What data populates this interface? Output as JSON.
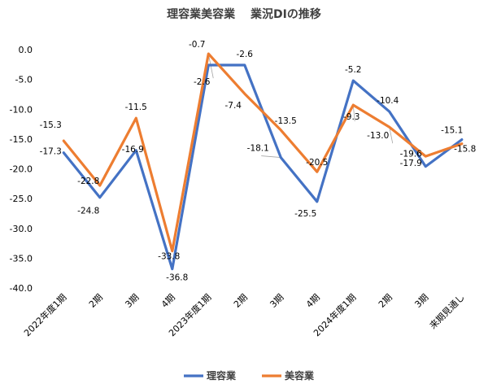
{
  "chart_data": {
    "type": "line",
    "title": "理容業美容業　 業況DIの推移",
    "categories": [
      "2022年度1期",
      "2期",
      "3期",
      "4期",
      "2023年度1期",
      "2期",
      "3期",
      "4期",
      "2024年度1期",
      "2期",
      "3期",
      "来期見通し"
    ],
    "ylim": [
      -40.0,
      0.0
    ],
    "yticks": [
      "0.0",
      "-5.0",
      "-10.0",
      "-15.0",
      "-20.0",
      "-25.0",
      "-30.0",
      "-35.0",
      "-40.0"
    ],
    "ytick_values": [
      0,
      -5,
      -10,
      -15,
      -20,
      -25,
      -30,
      -35,
      -40
    ],
    "grid": false,
    "legend_position": "bottom",
    "series": [
      {
        "name": "理容業",
        "color": "#4472C4",
        "values": [
          -17.3,
          -24.8,
          -16.9,
          -36.8,
          -2.6,
          -2.6,
          -18.1,
          -25.5,
          -5.2,
          -10.4,
          -19.6,
          -15.1
        ],
        "labels": [
          "-17.3",
          "-24.8",
          "-16.9",
          "-36.8",
          "-2.6",
          "-2.6",
          "-18.1",
          "-25.5",
          "-5.2",
          "-10.4",
          "-19.6",
          "-15.1"
        ]
      },
      {
        "name": "美容業",
        "color": "#ED7D31",
        "values": [
          -15.3,
          -22.8,
          -11.5,
          -33.8,
          -0.7,
          -7.4,
          -13.5,
          -20.5,
          -9.3,
          -13.0,
          -17.9,
          -15.8
        ],
        "labels": [
          "-15.3",
          "-22.8",
          "-11.5",
          "-33.8",
          "-0.7",
          "-7.4",
          "-13.5",
          "-20.5",
          "-9.3",
          "-13.0",
          "-17.9",
          "-15.8"
        ]
      }
    ]
  }
}
